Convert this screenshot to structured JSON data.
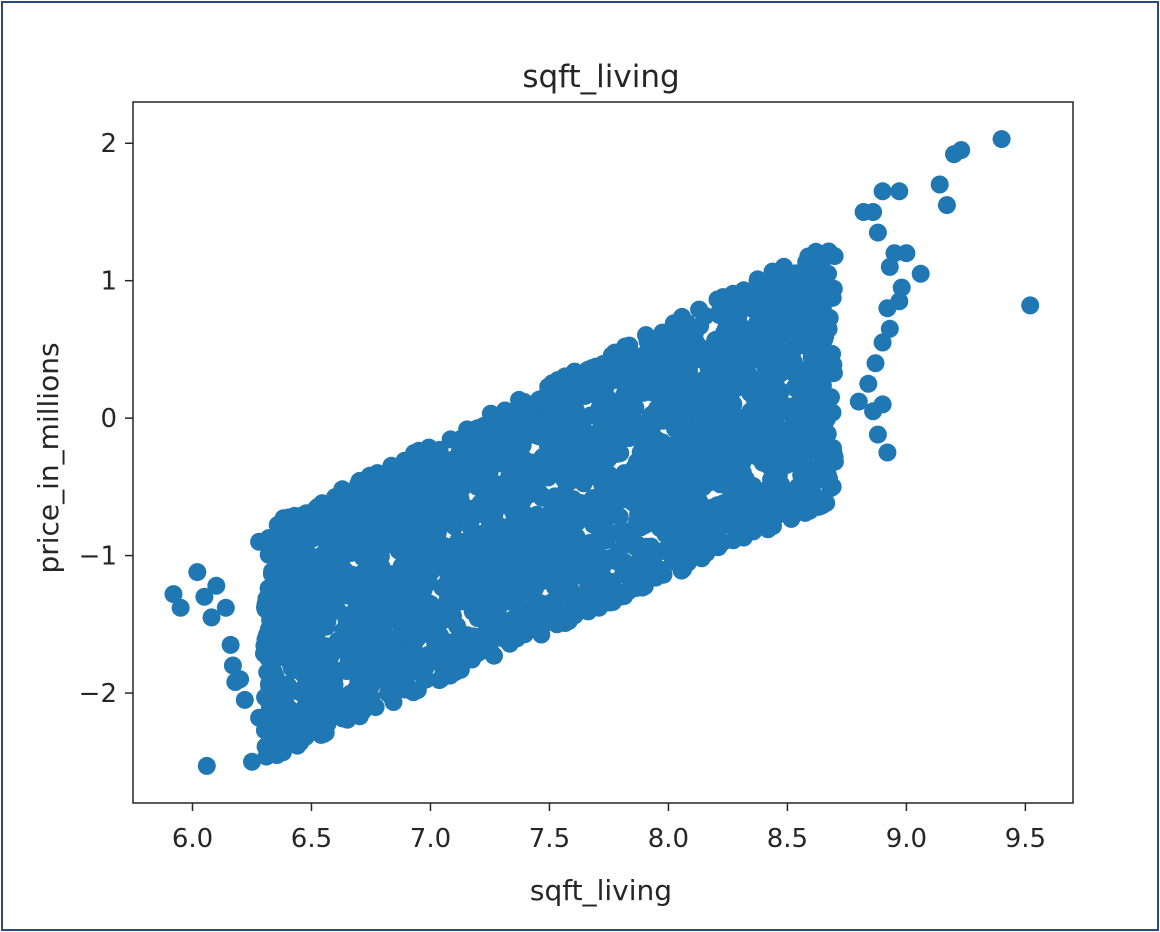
{
  "chart_data": {
    "type": "scatter",
    "title": "sqft_living",
    "xlabel": "sqft_living",
    "ylabel": "price_in_millions",
    "xlim": [
      5.75,
      9.7
    ],
    "ylim": [
      -2.8,
      2.3
    ],
    "xticks": [
      "6.0",
      "6.5",
      "7.0",
      "7.5",
      "8.0",
      "8.5",
      "9.0",
      "9.5"
    ],
    "yticks": [
      "2",
      "1",
      "0",
      "−1",
      "−2"
    ],
    "grid": false,
    "legend": "none",
    "marker_color": "#1f77b4",
    "main_cloud": {
      "description_axis": "dense band of points",
      "trend": "positive linear",
      "x_range": [
        6.3,
        8.7
      ],
      "y_at_x_lower": [
        -2.5,
        -0.8
      ],
      "y_at_x_upper": [
        -0.6,
        1.3
      ]
    },
    "outlier_points": [
      {
        "x": 5.92,
        "y": -1.28
      },
      {
        "x": 5.95,
        "y": -1.38
      },
      {
        "x": 6.02,
        "y": -1.12
      },
      {
        "x": 6.05,
        "y": -1.3
      },
      {
        "x": 6.08,
        "y": -1.45
      },
      {
        "x": 6.1,
        "y": -1.22
      },
      {
        "x": 6.14,
        "y": -1.38
      },
      {
        "x": 6.16,
        "y": -1.65
      },
      {
        "x": 6.17,
        "y": -1.8
      },
      {
        "x": 6.18,
        "y": -1.92
      },
      {
        "x": 6.2,
        "y": -1.9
      },
      {
        "x": 6.22,
        "y": -2.05
      },
      {
        "x": 6.06,
        "y": -2.53
      },
      {
        "x": 6.25,
        "y": -2.5
      },
      {
        "x": 6.28,
        "y": -2.18
      },
      {
        "x": 6.32,
        "y": -2.38
      },
      {
        "x": 6.36,
        "y": -2.38
      },
      {
        "x": 6.28,
        "y": -0.9
      },
      {
        "x": 8.82,
        "y": 1.5
      },
      {
        "x": 8.86,
        "y": 1.5
      },
      {
        "x": 8.88,
        "y": 1.35
      },
      {
        "x": 8.9,
        "y": 1.65
      },
      {
        "x": 8.93,
        "y": 1.1
      },
      {
        "x": 8.95,
        "y": 1.2
      },
      {
        "x": 8.97,
        "y": 1.65
      },
      {
        "x": 9.0,
        "y": 1.2
      },
      {
        "x": 9.06,
        "y": 1.05
      },
      {
        "x": 8.93,
        "y": 0.65
      },
      {
        "x": 8.9,
        "y": 0.55
      },
      {
        "x": 8.87,
        "y": 0.4
      },
      {
        "x": 8.97,
        "y": 0.85
      },
      {
        "x": 8.98,
        "y": 0.95
      },
      {
        "x": 8.92,
        "y": 0.8
      },
      {
        "x": 9.14,
        "y": 1.7
      },
      {
        "x": 9.17,
        "y": 1.55
      },
      {
        "x": 9.2,
        "y": 1.92
      },
      {
        "x": 9.23,
        "y": 1.95
      },
      {
        "x": 9.4,
        "y": 2.03
      },
      {
        "x": 9.52,
        "y": 0.82
      },
      {
        "x": 8.92,
        "y": -0.25
      },
      {
        "x": 8.88,
        "y": -0.12
      },
      {
        "x": 8.9,
        "y": 0.1
      },
      {
        "x": 8.86,
        "y": 0.05
      },
      {
        "x": 8.84,
        "y": 0.25
      },
      {
        "x": 8.8,
        "y": 0.12
      }
    ]
  }
}
